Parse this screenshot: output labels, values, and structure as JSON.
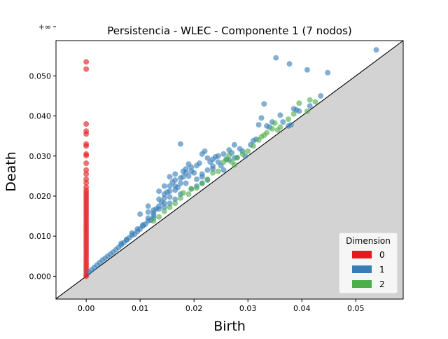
{
  "chart_data": {
    "type": "scatter",
    "title": "Persistencia - WLEC - Componente 1 (7 nodos)",
    "xlabel": "Birth",
    "ylabel": "Death",
    "xlim": [
      -0.0056,
      0.0588
    ],
    "ylim": [
      -0.0057,
      0.0588
    ],
    "x_ticks": [
      {
        "value": 0.0,
        "label": "0.00"
      },
      {
        "value": 0.01,
        "label": "0.01"
      },
      {
        "value": 0.02,
        "label": "0.02"
      },
      {
        "value": 0.03,
        "label": "0.03"
      },
      {
        "value": 0.04,
        "label": "0.04"
      },
      {
        "value": 0.05,
        "label": "0.05"
      }
    ],
    "y_ticks": [
      {
        "value": 0.0,
        "label": "0.000"
      },
      {
        "value": 0.01,
        "label": "0.010"
      },
      {
        "value": 0.02,
        "label": "0.020"
      },
      {
        "value": 0.03,
        "label": "0.030"
      },
      {
        "value": 0.04,
        "label": "0.040"
      },
      {
        "value": 0.05,
        "label": "0.050"
      }
    ],
    "infinity_line": {
      "value": 0.0623,
      "label": "+∞"
    },
    "diagonal": true,
    "legend": {
      "title": "Dimension",
      "placement": "lower-right"
    },
    "series": [
      {
        "name": "0",
        "color": "#e41a1c",
        "points": [
          [
            0,
            0.0623
          ],
          [
            0,
            0.0535
          ],
          [
            0,
            0.0517
          ],
          [
            0,
            0.038
          ],
          [
            0,
            0.0362
          ],
          [
            0,
            0.0355
          ],
          [
            0,
            0.033
          ],
          [
            0,
            0.0325
          ],
          [
            0,
            0.0305
          ],
          [
            0,
            0.0301
          ],
          [
            0,
            0.0282
          ],
          [
            0,
            0.0265
          ],
          [
            0,
            0.0255
          ],
          [
            0,
            0.0242
          ],
          [
            0,
            0.0233
          ],
          [
            0,
            0.0222
          ],
          [
            0,
            0.0214
          ],
          [
            0,
            0.0208
          ],
          [
            0,
            0.0202
          ],
          [
            0,
            0.0196
          ],
          [
            0,
            0.019
          ],
          [
            0,
            0.0184
          ],
          [
            0,
            0.0178
          ],
          [
            0,
            0.0172
          ],
          [
            0,
            0.0166
          ],
          [
            0,
            0.016
          ],
          [
            0,
            0.0154
          ],
          [
            0,
            0.0148
          ],
          [
            0,
            0.0142
          ],
          [
            0,
            0.0136
          ],
          [
            0,
            0.013
          ],
          [
            0,
            0.0124
          ],
          [
            0,
            0.0118
          ],
          [
            0,
            0.0112
          ],
          [
            0,
            0.0106
          ],
          [
            0,
            0.01
          ],
          [
            0,
            0.0094
          ],
          [
            0,
            0.0088
          ],
          [
            0,
            0.0082
          ],
          [
            0,
            0.0076
          ],
          [
            0,
            0.007
          ],
          [
            0,
            0.0064
          ],
          [
            0,
            0.0058
          ],
          [
            0,
            0.0052
          ],
          [
            0,
            0.0046
          ],
          [
            0,
            0.004
          ],
          [
            0,
            0.0034
          ],
          [
            0,
            0.0028
          ],
          [
            0,
            0.0022
          ],
          [
            0,
            0.0016
          ],
          [
            0,
            0.001
          ],
          [
            0,
            0.0004
          ],
          [
            0,
            0.0
          ]
        ]
      },
      {
        "name": "1",
        "color": "#377eb8",
        "points": [
          [
            0.0005,
            0.001
          ],
          [
            0.001,
            0.0016
          ],
          [
            0.0015,
            0.0022
          ],
          [
            0.002,
            0.0028
          ],
          [
            0.0025,
            0.0034
          ],
          [
            0.003,
            0.004
          ],
          [
            0.0035,
            0.0045
          ],
          [
            0.004,
            0.005
          ],
          [
            0.0045,
            0.0055
          ],
          [
            0.005,
            0.006
          ],
          [
            0.0055,
            0.0066
          ],
          [
            0.006,
            0.0072
          ],
          [
            0.0065,
            0.0078
          ],
          [
            0.007,
            0.0084
          ],
          [
            0.0075,
            0.009
          ],
          [
            0.008,
            0.0096
          ],
          [
            0.0085,
            0.0108
          ],
          [
            0.009,
            0.0105
          ],
          [
            0.0095,
            0.0112
          ],
          [
            0.01,
            0.0118
          ],
          [
            0.0105,
            0.0125
          ],
          [
            0.011,
            0.013
          ],
          [
            0.0115,
            0.0145
          ],
          [
            0.012,
            0.014
          ],
          [
            0.0125,
            0.0152
          ],
          [
            0.013,
            0.0168
          ],
          [
            0.0135,
            0.0175
          ],
          [
            0.014,
            0.0185
          ],
          [
            0.0145,
            0.0195
          ],
          [
            0.015,
            0.021
          ],
          [
            0.0155,
            0.0225
          ],
          [
            0.016,
            0.0235
          ],
          [
            0.0165,
            0.024
          ],
          [
            0.017,
            0.0222
          ],
          [
            0.0175,
            0.0245
          ],
          [
            0.018,
            0.0262
          ],
          [
            0.0185,
            0.0268
          ],
          [
            0.019,
            0.025
          ],
          [
            0.0195,
            0.0272
          ],
          [
            0.02,
            0.0258
          ],
          [
            0.0205,
            0.0276
          ],
          [
            0.021,
            0.0282
          ],
          [
            0.0215,
            0.0305
          ],
          [
            0.022,
            0.0312
          ],
          [
            0.0225,
            0.0265
          ],
          [
            0.023,
            0.0285
          ],
          [
            0.0235,
            0.0292
          ],
          [
            0.024,
            0.0298
          ],
          [
            0.0245,
            0.0285
          ],
          [
            0.025,
            0.0276
          ],
          [
            0.0255,
            0.0305
          ],
          [
            0.026,
            0.0292
          ],
          [
            0.0265,
            0.0315
          ],
          [
            0.027,
            0.0308
          ],
          [
            0.0275,
            0.0328
          ],
          [
            0.028,
            0.0296
          ],
          [
            0.029,
            0.0312
          ],
          [
            0.0295,
            0.03
          ],
          [
            0.0305,
            0.0328
          ],
          [
            0.031,
            0.0338
          ],
          [
            0.0315,
            0.0342
          ],
          [
            0.032,
            0.0378
          ],
          [
            0.0325,
            0.0395
          ],
          [
            0.033,
            0.043
          ],
          [
            0.0335,
            0.0375
          ],
          [
            0.034,
            0.0372
          ],
          [
            0.0345,
            0.0385
          ],
          [
            0.0352,
            0.0545
          ],
          [
            0.036,
            0.0402
          ],
          [
            0.0365,
            0.0385
          ],
          [
            0.0375,
            0.0375
          ],
          [
            0.0377,
            0.053
          ],
          [
            0.038,
            0.0378
          ],
          [
            0.0385,
            0.0418
          ],
          [
            0.039,
            0.0415
          ],
          [
            0.0395,
            0.0412
          ],
          [
            0.041,
            0.0515
          ],
          [
            0.0415,
            0.0425
          ],
          [
            0.0435,
            0.045
          ],
          [
            0.0448,
            0.0508
          ],
          [
            0.0538,
            0.0565
          ],
          [
            0.0175,
            0.033
          ],
          [
            0.0125,
            0.0158
          ],
          [
            0.0115,
            0.016
          ],
          [
            0.01,
            0.0155
          ],
          [
            0.0135,
            0.0192
          ],
          [
            0.0155,
            0.0198
          ],
          [
            0.0165,
            0.0215
          ],
          [
            0.019,
            0.028
          ],
          [
            0.0205,
            0.0242
          ],
          [
            0.0215,
            0.0255
          ],
          [
            0.0235,
            0.0268
          ],
          [
            0.0255,
            0.0265
          ],
          [
            0.0185,
            0.0232
          ],
          [
            0.0175,
            0.0205
          ],
          [
            0.0195,
            0.0218
          ],
          [
            0.0205,
            0.0225
          ],
          [
            0.0215,
            0.0232
          ],
          [
            0.0225,
            0.024
          ],
          [
            0.0195,
            0.0262
          ],
          [
            0.0145,
            0.0172
          ],
          [
            0.0155,
            0.0182
          ],
          [
            0.0165,
            0.0192
          ],
          [
            0.0145,
            0.0182
          ],
          [
            0.0135,
            0.0168
          ],
          [
            0.0125,
            0.0145
          ],
          [
            0.0115,
            0.0138
          ],
          [
            0.0105,
            0.0128
          ],
          [
            0.0095,
            0.0118
          ],
          [
            0.0085,
            0.0102
          ],
          [
            0.0075,
            0.0092
          ],
          [
            0.0065,
            0.0082
          ],
          [
            0.0165,
            0.0255
          ],
          [
            0.018,
            0.0248
          ],
          [
            0.0235,
            0.0275
          ],
          [
            0.0245,
            0.03
          ],
          [
            0.0265,
            0.029
          ],
          [
            0.0285,
            0.0318
          ],
          [
            0.0275,
            0.0295
          ],
          [
            0.0135,
            0.0212
          ],
          [
            0.0155,
            0.0248
          ],
          [
            0.0225,
            0.0295
          ],
          [
            0.0215,
            0.0248
          ],
          [
            0.0185,
            0.0258
          ],
          [
            0.0175,
            0.0232
          ],
          [
            0.0165,
            0.0225
          ],
          [
            0.0155,
            0.0212
          ],
          [
            0.0145,
            0.0205
          ],
          [
            0.0145,
            0.0225
          ],
          [
            0.0125,
            0.0165
          ],
          [
            0.0115,
            0.0175
          ]
        ]
      },
      {
        "name": "2",
        "color": "#4daf4a",
        "points": [
          [
            0.0145,
            0.0162
          ],
          [
            0.0165,
            0.0182
          ],
          [
            0.0175,
            0.0195
          ],
          [
            0.018,
            0.0208
          ],
          [
            0.019,
            0.0205
          ],
          [
            0.0195,
            0.0218
          ],
          [
            0.0205,
            0.022
          ],
          [
            0.0215,
            0.0232
          ],
          [
            0.0225,
            0.0242
          ],
          [
            0.0235,
            0.0258
          ],
          [
            0.0245,
            0.0262
          ],
          [
            0.0255,
            0.0285
          ],
          [
            0.026,
            0.0292
          ],
          [
            0.0265,
            0.0302
          ],
          [
            0.027,
            0.0285
          ],
          [
            0.0275,
            0.0278
          ],
          [
            0.028,
            0.0296
          ],
          [
            0.029,
            0.0305
          ],
          [
            0.03,
            0.0312
          ],
          [
            0.031,
            0.0325
          ],
          [
            0.032,
            0.034
          ],
          [
            0.0325,
            0.0348
          ],
          [
            0.033,
            0.0352
          ],
          [
            0.0335,
            0.0358
          ],
          [
            0.0345,
            0.0368
          ],
          [
            0.035,
            0.0382
          ],
          [
            0.0355,
            0.0365
          ],
          [
            0.036,
            0.0372
          ],
          [
            0.0375,
            0.0392
          ],
          [
            0.0385,
            0.0405
          ],
          [
            0.0395,
            0.0432
          ],
          [
            0.041,
            0.0412
          ],
          [
            0.0415,
            0.044
          ],
          [
            0.0425,
            0.0435
          ],
          [
            0.0135,
            0.0148
          ],
          [
            0.0125,
            0.0138
          ],
          [
            0.0155,
            0.0172
          ]
        ]
      }
    ]
  }
}
